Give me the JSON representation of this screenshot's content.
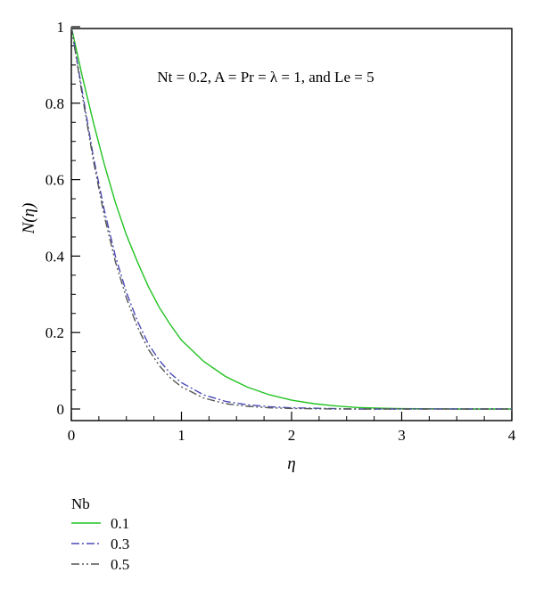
{
  "chart_data": {
    "type": "line",
    "title": "",
    "xlabel": "η",
    "ylabel": "N(η)",
    "xlim": [
      0,
      4
    ],
    "ylim": [
      0,
      1
    ],
    "x_ticks": [
      "0",
      "1",
      "2",
      "3",
      "4"
    ],
    "y_ticks": [
      "0",
      "0.2",
      "0.4",
      "0.6",
      "0.8",
      "1"
    ],
    "annotation": "Nt = 0.2, A = Pr = λ = 1, and Le = 5",
    "grid": false,
    "legend": {
      "title": "Nb",
      "placement": "bottom-left, below plot"
    },
    "series": [
      {
        "name": "0.1",
        "color": "#22c322",
        "dash": "solid",
        "x": [
          0,
          0.1,
          0.2,
          0.3,
          0.4,
          0.5,
          0.6,
          0.7,
          0.8,
          0.9,
          1.0,
          1.2,
          1.4,
          1.6,
          1.8,
          2.0,
          2.2,
          2.4,
          2.6,
          2.8,
          3.0,
          3.5,
          4.0
        ],
        "values": [
          1.0,
          0.87,
          0.75,
          0.64,
          0.54,
          0.455,
          0.385,
          0.32,
          0.265,
          0.22,
          0.18,
          0.125,
          0.085,
          0.057,
          0.037,
          0.023,
          0.014,
          0.008,
          0.004,
          0.002,
          0.001,
          0.0,
          0.0
        ]
      },
      {
        "name": "0.3",
        "color": "#4a4ab8",
        "dash": "dashdot",
        "x": [
          0,
          0.1,
          0.2,
          0.3,
          0.4,
          0.5,
          0.6,
          0.7,
          0.8,
          0.9,
          1.0,
          1.2,
          1.4,
          1.6,
          1.8,
          2.0,
          2.2,
          2.4,
          2.6,
          2.8,
          3.0,
          3.5,
          4.0
        ],
        "values": [
          1.0,
          0.83,
          0.66,
          0.52,
          0.4,
          0.305,
          0.23,
          0.17,
          0.127,
          0.093,
          0.069,
          0.037,
          0.02,
          0.011,
          0.006,
          0.003,
          0.002,
          0.001,
          0.0,
          0.0,
          0.0,
          0.0,
          0.0
        ]
      },
      {
        "name": "0.5",
        "color": "#555555",
        "dash": "dashdotdot",
        "x": [
          0,
          0.1,
          0.2,
          0.3,
          0.4,
          0.5,
          0.6,
          0.7,
          0.8,
          0.9,
          1.0,
          1.2,
          1.4,
          1.6,
          1.8,
          2.0,
          2.2,
          2.4,
          2.6,
          2.8,
          3.0,
          3.5,
          4.0
        ],
        "values": [
          1.0,
          0.82,
          0.65,
          0.505,
          0.385,
          0.29,
          0.215,
          0.156,
          0.113,
          0.081,
          0.058,
          0.029,
          0.014,
          0.007,
          0.003,
          0.0015,
          0.0007,
          0.0,
          0.0,
          0.0,
          0.0,
          0.0,
          0.0
        ]
      }
    ]
  }
}
